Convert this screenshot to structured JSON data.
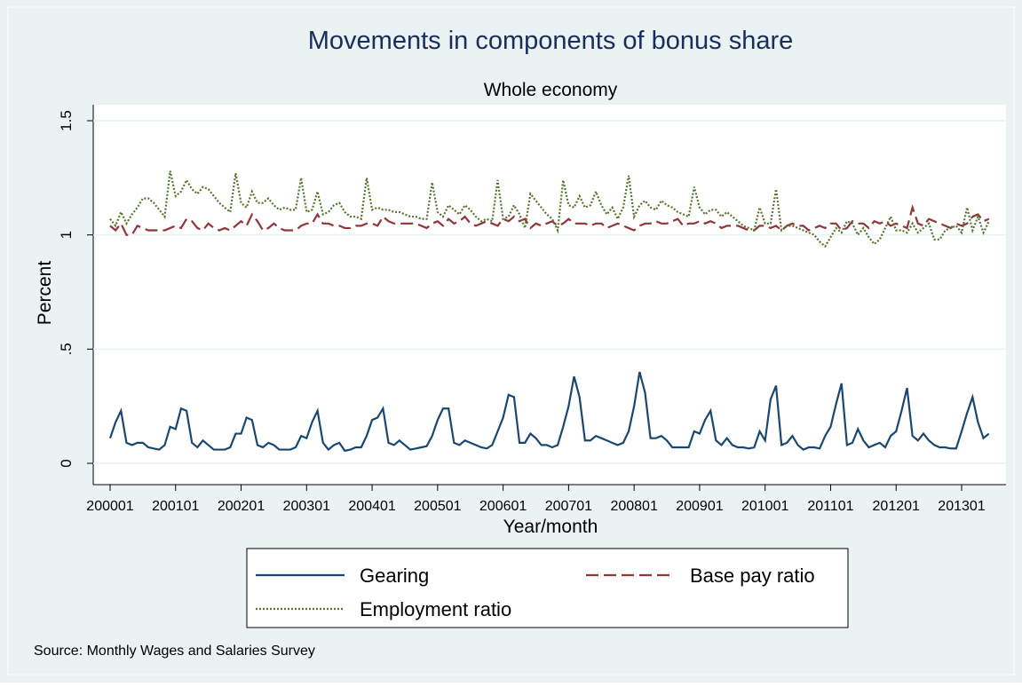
{
  "chart_data": {
    "type": "line",
    "title": "Movements in components of bonus share",
    "subtitle": "Whole economy",
    "x_label": "Year/month",
    "y_label": "Percent",
    "source": "Source: Monthly Wages and Salaries Survey",
    "categories": [
      "200001",
      null,
      null,
      null,
      null,
      null,
      null,
      null,
      null,
      null,
      null,
      null,
      "200101",
      null,
      null,
      null,
      null,
      null,
      null,
      null,
      null,
      null,
      null,
      null,
      "200201",
      null,
      null,
      null,
      null,
      null,
      null,
      null,
      null,
      null,
      null,
      null,
      "200301",
      null,
      null,
      null,
      null,
      null,
      null,
      null,
      null,
      null,
      null,
      null,
      "200401",
      null,
      null,
      null,
      null,
      null,
      null,
      null,
      null,
      null,
      null,
      null,
      "200501",
      null,
      null,
      null,
      null,
      null,
      null,
      null,
      null,
      null,
      null,
      null,
      "200601",
      null,
      null,
      null,
      null,
      null,
      null,
      null,
      null,
      null,
      null,
      null,
      "200701",
      null,
      null,
      null,
      null,
      null,
      null,
      null,
      null,
      null,
      null,
      null,
      "200801",
      null,
      null,
      null,
      null,
      null,
      null,
      null,
      null,
      null,
      null,
      null,
      "200901",
      null,
      null,
      null,
      null,
      null,
      null,
      null,
      null,
      null,
      null,
      null,
      "201001",
      null,
      null,
      null,
      null,
      null,
      null,
      null,
      null,
      null,
      null,
      null,
      "201101",
      null,
      null,
      null,
      null,
      null,
      null,
      null,
      null,
      null,
      null,
      null,
      "201201",
      null,
      null,
      null,
      null,
      null,
      null,
      null,
      null,
      null,
      null,
      null,
      "201301",
      null,
      null,
      null,
      null,
      null
    ],
    "ylim": [
      0,
      1.5
    ],
    "yticks": [
      0,
      {
        "value": 0.5,
        "label": ".5"
      },
      1,
      1.5
    ],
    "grid": true,
    "legend": "bottom",
    "series": [
      {
        "name": "Gearing",
        "color": "#1a476f",
        "dash": "solid",
        "values": [
          0.11,
          0.18,
          0.23,
          0.09,
          0.08,
          0.09,
          0.09,
          0.07,
          0.065,
          0.06,
          0.08,
          0.16,
          0.15,
          0.24,
          0.23,
          0.09,
          0.07,
          0.1,
          0.08,
          0.06,
          0.06,
          0.06,
          0.07,
          0.13,
          0.13,
          0.2,
          0.19,
          0.08,
          0.07,
          0.09,
          0.08,
          0.06,
          0.06,
          0.06,
          0.07,
          0.12,
          0.11,
          0.18,
          0.23,
          0.09,
          0.06,
          0.08,
          0.09,
          0.055,
          0.06,
          0.07,
          0.07,
          0.12,
          0.19,
          0.2,
          0.24,
          0.09,
          0.08,
          0.1,
          0.08,
          0.06,
          0.065,
          0.07,
          0.075,
          0.12,
          0.19,
          0.24,
          0.24,
          0.09,
          0.08,
          0.1,
          0.09,
          0.08,
          0.07,
          0.065,
          0.08,
          0.14,
          0.2,
          0.3,
          0.29,
          0.09,
          0.09,
          0.13,
          0.11,
          0.08,
          0.08,
          0.07,
          0.08,
          0.16,
          0.25,
          0.38,
          0.29,
          0.1,
          0.1,
          0.12,
          0.11,
          0.1,
          0.09,
          0.08,
          0.09,
          0.14,
          0.25,
          0.4,
          0.31,
          0.11,
          0.11,
          0.12,
          0.1,
          0.07,
          0.07,
          0.07,
          0.07,
          0.14,
          0.13,
          0.19,
          0.23,
          0.1,
          0.08,
          0.11,
          0.08,
          0.07,
          0.07,
          0.065,
          0.07,
          0.14,
          0.1,
          0.28,
          0.34,
          0.08,
          0.09,
          0.12,
          0.08,
          0.06,
          0.07,
          0.07,
          0.065,
          0.12,
          0.16,
          0.26,
          0.35,
          0.08,
          0.09,
          0.15,
          0.1,
          0.07,
          0.08,
          0.09,
          0.07,
          0.12,
          0.14,
          0.23,
          0.33,
          0.12,
          0.1,
          0.13,
          0.1,
          0.08,
          0.07,
          0.07,
          0.065,
          0.065,
          0.14,
          0.22,
          0.29,
          0.18,
          0.11,
          0.13
        ]
      },
      {
        "name": "Base pay ratio",
        "color": "#90353b",
        "dash": "dashed",
        "values": [
          1.04,
          1.02,
          1.05,
          1.0,
          1.0,
          1.04,
          1.03,
          1.02,
          1.02,
          1.02,
          1.02,
          1.03,
          1.04,
          1.03,
          1.07,
          1.06,
          1.03,
          1.02,
          1.05,
          1.03,
          1.02,
          1.03,
          1.02,
          1.04,
          1.06,
          1.04,
          1.09,
          1.06,
          1.02,
          1.03,
          1.05,
          1.03,
          1.02,
          1.02,
          1.02,
          1.04,
          1.05,
          1.05,
          1.09,
          1.05,
          1.05,
          1.04,
          1.04,
          1.03,
          1.03,
          1.04,
          1.04,
          1.05,
          1.05,
          1.04,
          1.08,
          1.06,
          1.05,
          1.05,
          1.05,
          1.05,
          1.05,
          1.04,
          1.03,
          1.05,
          1.06,
          1.04,
          1.07,
          1.05,
          1.06,
          1.08,
          1.05,
          1.04,
          1.05,
          1.06,
          1.05,
          1.04,
          1.07,
          1.06,
          1.08,
          1.06,
          1.07,
          1.03,
          1.05,
          1.04,
          1.05,
          1.06,
          1.04,
          1.05,
          1.07,
          1.05,
          1.05,
          1.05,
          1.04,
          1.05,
          1.05,
          1.03,
          1.04,
          1.05,
          1.04,
          1.03,
          1.02,
          1.04,
          1.05,
          1.05,
          1.06,
          1.05,
          1.05,
          1.06,
          1.07,
          1.04,
          1.05,
          1.05,
          1.06,
          1.05,
          1.06,
          1.05,
          1.03,
          1.04,
          1.04,
          1.04,
          1.03,
          1.02,
          1.02,
          1.04,
          1.04,
          1.03,
          1.04,
          1.02,
          1.04,
          1.05,
          1.04,
          1.04,
          1.02,
          1.03,
          1.04,
          1.03,
          1.05,
          1.05,
          1.02,
          1.03,
          1.06,
          1.05,
          1.05,
          1.03,
          1.06,
          1.05,
          1.06,
          1.04,
          1.05,
          1.04,
          1.03,
          1.12,
          1.05,
          1.04,
          1.07,
          1.06,
          1.05,
          1.04,
          1.03,
          1.05,
          1.04,
          1.05,
          1.08,
          1.09,
          1.06,
          1.07
        ]
      },
      {
        "name": "Employment ratio",
        "color": "#55752f",
        "dash": "dotted",
        "values": [
          1.07,
          1.04,
          1.1,
          1.05,
          1.09,
          1.12,
          1.16,
          1.16,
          1.14,
          1.11,
          1.08,
          1.28,
          1.17,
          1.19,
          1.24,
          1.2,
          1.18,
          1.21,
          1.2,
          1.17,
          1.14,
          1.12,
          1.1,
          1.27,
          1.14,
          1.12,
          1.19,
          1.14,
          1.14,
          1.16,
          1.13,
          1.11,
          1.12,
          1.11,
          1.11,
          1.25,
          1.1,
          1.11,
          1.19,
          1.09,
          1.1,
          1.13,
          1.14,
          1.1,
          1.08,
          1.08,
          1.07,
          1.25,
          1.11,
          1.12,
          1.11,
          1.11,
          1.1,
          1.1,
          1.09,
          1.08,
          1.08,
          1.07,
          1.07,
          1.23,
          1.1,
          1.08,
          1.13,
          1.11,
          1.09,
          1.13,
          1.11,
          1.08,
          1.06,
          1.07,
          1.06,
          1.24,
          1.07,
          1.08,
          1.13,
          1.09,
          1.03,
          1.18,
          1.15,
          1.12,
          1.09,
          1.07,
          1.02,
          1.24,
          1.13,
          1.12,
          1.17,
          1.12,
          1.13,
          1.19,
          1.13,
          1.09,
          1.12,
          1.07,
          1.12,
          1.26,
          1.08,
          1.13,
          1.15,
          1.12,
          1.11,
          1.15,
          1.13,
          1.12,
          1.1,
          1.09,
          1.08,
          1.21,
          1.12,
          1.09,
          1.11,
          1.11,
          1.08,
          1.1,
          1.08,
          1.06,
          1.04,
          1.03,
          1.02,
          1.12,
          1.05,
          1.05,
          1.2,
          1.02,
          1.04,
          1.04,
          1.03,
          1.02,
          1.01,
          1.0,
          0.97,
          0.95,
          0.99,
          1.03,
          1.01,
          1.06,
          1.05,
          1.0,
          1.03,
          0.99,
          0.96,
          0.98,
          1.03,
          1.08,
          1.02,
          1.02,
          1.01,
          1.05,
          1.01,
          1.03,
          1.05,
          0.98,
          0.98,
          1.02,
          1.03,
          1.04,
          1.01,
          1.12,
          1.02,
          1.08,
          1.01,
          1.06
        ]
      }
    ]
  }
}
